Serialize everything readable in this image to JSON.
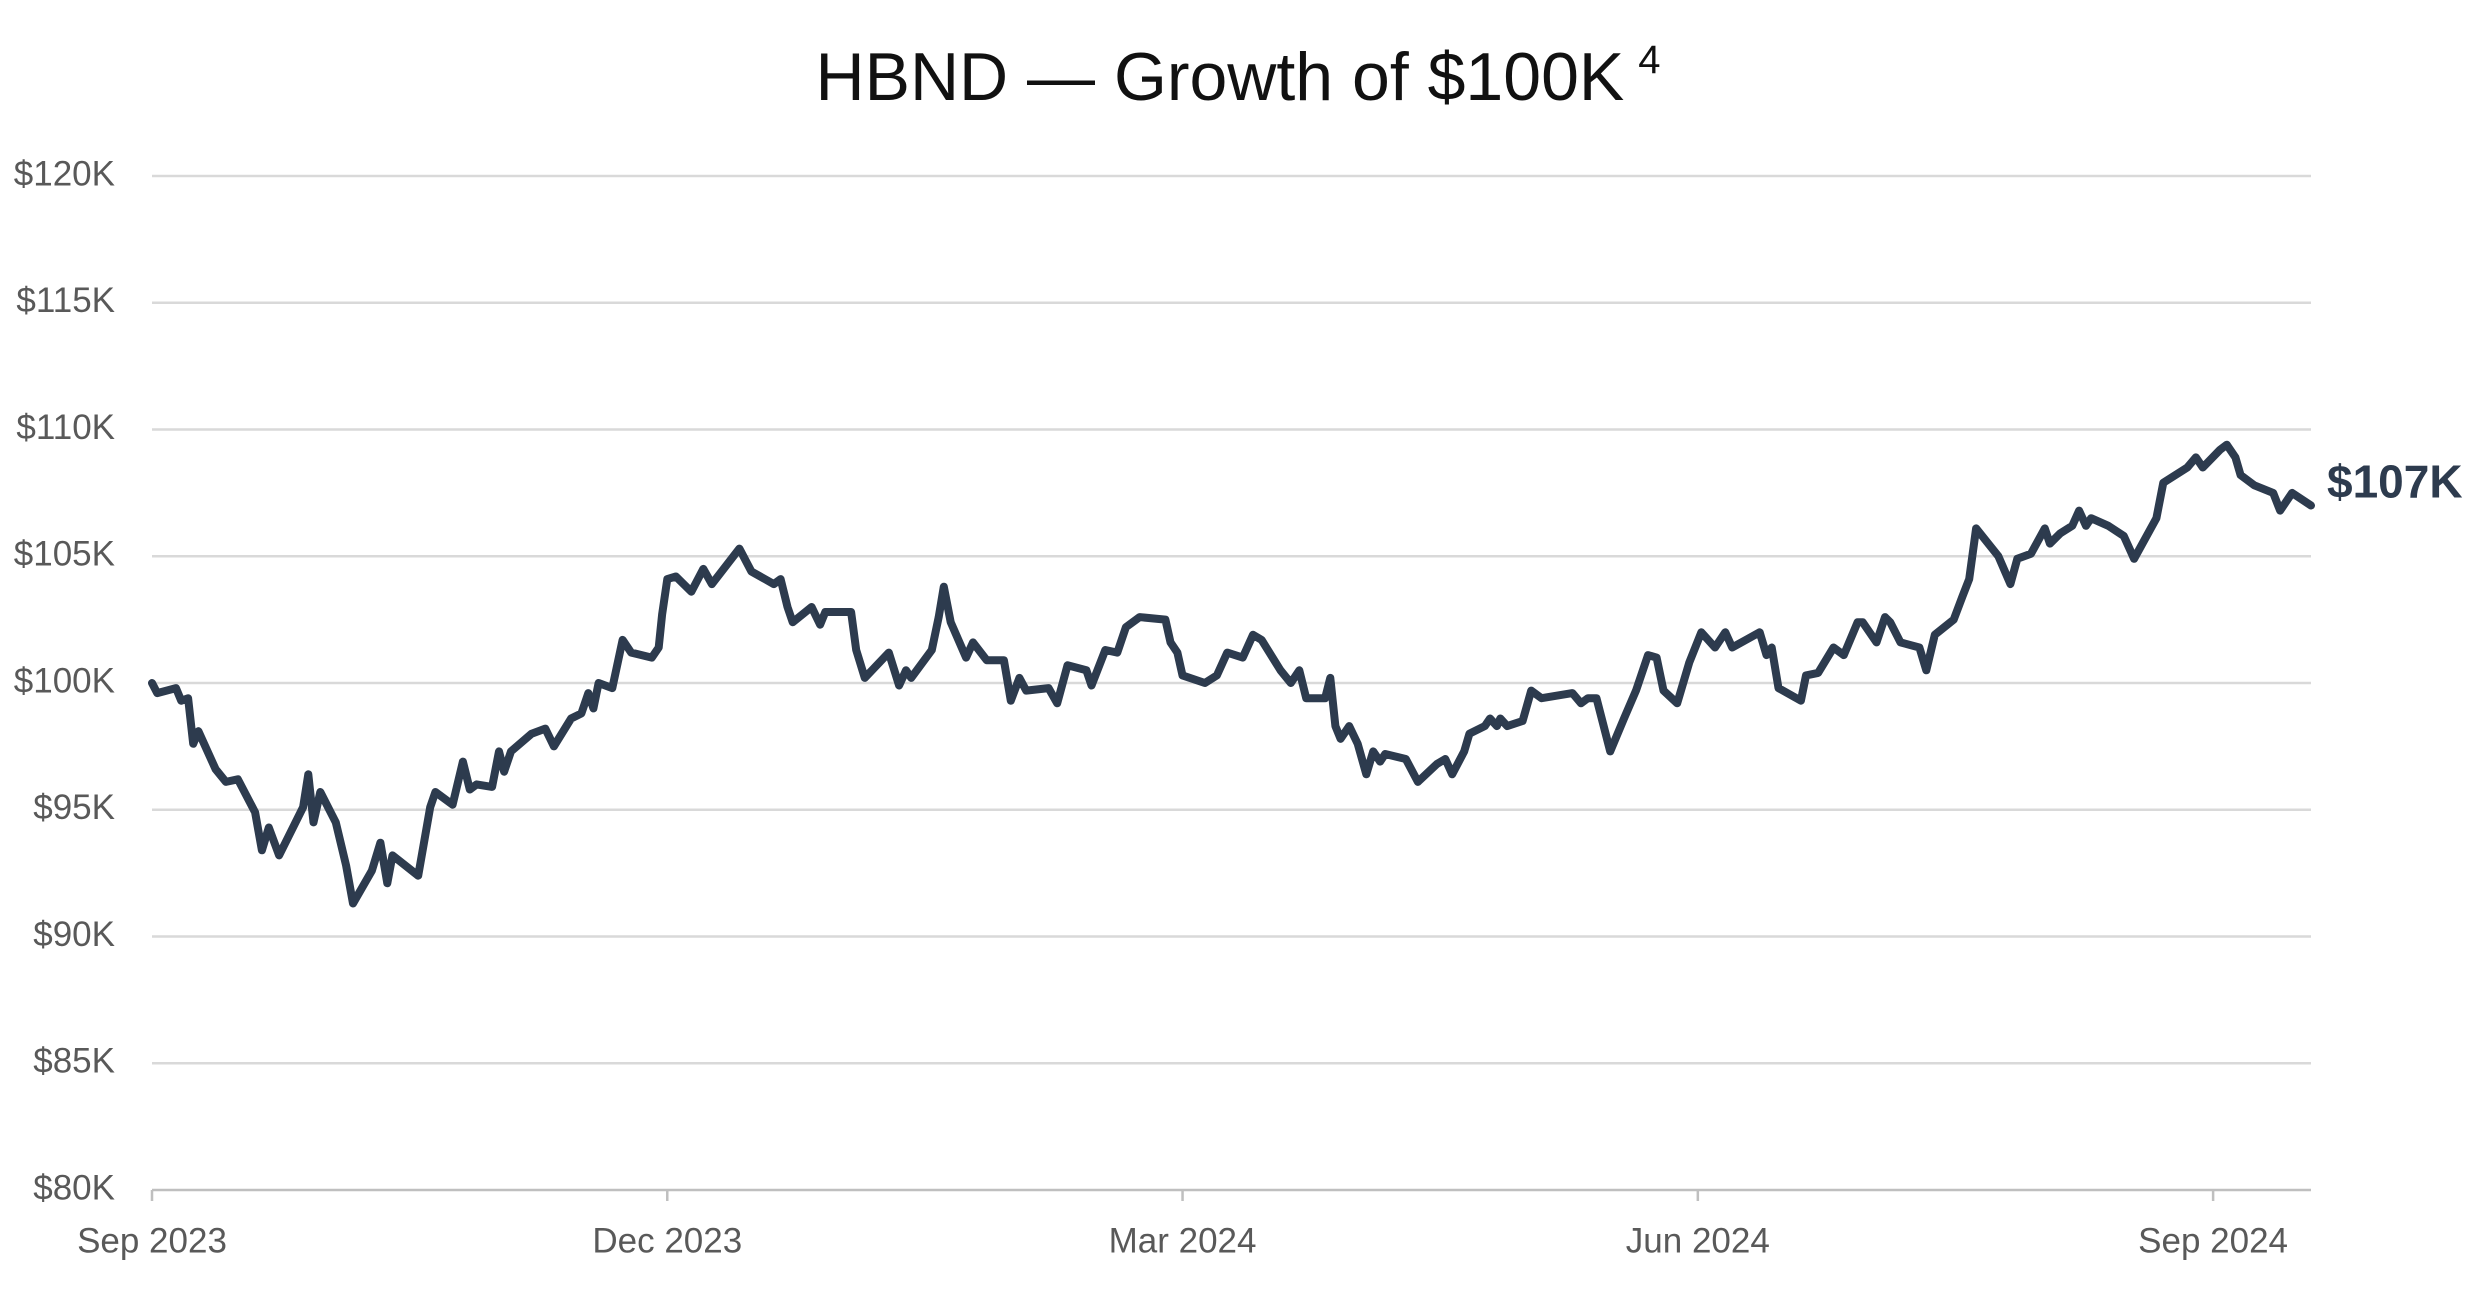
{
  "chart_data": {
    "type": "line",
    "title": "HBND — Growth of $100K",
    "title_superscript": "4",
    "annotation": "$107K",
    "color": "#2d3b4e",
    "grid": true,
    "xlim": [
      0,
      12.57
    ],
    "xticks": [
      {
        "value": 0,
        "label": "Sep 2023"
      },
      {
        "value": 3,
        "label": "Dec 2023"
      },
      {
        "value": 6,
        "label": "Mar 2024"
      },
      {
        "value": 9,
        "label": "Jun 2024"
      },
      {
        "value": 12,
        "label": "Sep 2024"
      }
    ],
    "ylim": [
      80,
      120
    ],
    "yticks": [
      {
        "value": 80,
        "label": "$80K"
      },
      {
        "value": 85,
        "label": "$85K"
      },
      {
        "value": 90,
        "label": "$90K"
      },
      {
        "value": 95,
        "label": "$95K"
      },
      {
        "value": 100,
        "label": "$100K"
      },
      {
        "value": 105,
        "label": "$105K"
      },
      {
        "value": 110,
        "label": "$110K"
      },
      {
        "value": 115,
        "label": "$115K"
      },
      {
        "value": 120,
        "label": "$120K"
      }
    ],
    "x": [
      0,
      0.03,
      0.14,
      0.17,
      0.21,
      0.24,
      0.27,
      0.37,
      0.43,
      0.5,
      0.6,
      0.64,
      0.68,
      0.74,
      0.88,
      0.91,
      0.94,
      0.98,
      1.07,
      1.13,
      1.17,
      1.28,
      1.33,
      1.37,
      1.4,
      1.55,
      1.62,
      1.65,
      1.75,
      1.81,
      1.85,
      1.89,
      1.98,
      2.02,
      2.05,
      2.09,
      2.21,
      2.29,
      2.34,
      2.44,
      2.5,
      2.54,
      2.57,
      2.6,
      2.68,
      2.74,
      2.79,
      2.91,
      2.95,
      2.97,
      3.0,
      3.05,
      3.14,
      3.21,
      3.26,
      3.42,
      3.49,
      3.62,
      3.66,
      3.7,
      3.73,
      3.84,
      3.89,
      3.92,
      4.07,
      4.1,
      4.15,
      4.29,
      4.35,
      4.39,
      4.42,
      4.54,
      4.58,
      4.61,
      4.65,
      4.74,
      4.78,
      4.86,
      4.96,
      5.0,
      5.05,
      5.09,
      5.22,
      5.27,
      5.33,
      5.44,
      5.47,
      5.55,
      5.62,
      5.67,
      5.75,
      5.9,
      5.93,
      5.97,
      6.0,
      6.13,
      6.2,
      6.26,
      6.35,
      6.41,
      6.46,
      6.57,
      6.63,
      6.68,
      6.72,
      6.83,
      6.86,
      6.89,
      6.92,
      6.97,
      7.02,
      7.07,
      7.11,
      7.15,
      7.18,
      7.3,
      7.37,
      7.48,
      7.53,
      7.57,
      7.64,
      7.67,
      7.76,
      7.79,
      7.83,
      7.85,
      7.89,
      7.98,
      8.03,
      8.09,
      8.27,
      8.32,
      8.36,
      8.41,
      8.49,
      8.57,
      8.64,
      8.71,
      8.76,
      8.8,
      8.88,
      8.95,
      9.02,
      9.1,
      9.16,
      9.2,
      9.36,
      9.4,
      9.43,
      9.47,
      9.6,
      9.63,
      9.7,
      9.79,
      9.85,
      9.93,
      9.96,
      10.04,
      10.09,
      10.12,
      10.18,
      10.29,
      10.33,
      10.38,
      10.49,
      10.54,
      10.58,
      10.62,
      10.75,
      10.82,
      10.86,
      10.94,
      11.02,
      11.05,
      11.11,
      11.18,
      11.22,
      11.26,
      11.29,
      11.39,
      11.48,
      11.54,
      11.67,
      11.71,
      11.85,
      11.9,
      11.94,
      12.04,
      12.08,
      12.13,
      12.16,
      12.24,
      12.35,
      12.39,
      12.46,
      12.57
    ],
    "values": [
      100.0,
      99.6,
      99.8,
      99.3,
      99.4,
      97.6,
      98.1,
      96.6,
      96.1,
      96.2,
      94.9,
      93.4,
      94.3,
      93.2,
      95.1,
      96.4,
      94.5,
      95.7,
      94.5,
      92.8,
      91.3,
      92.6,
      93.7,
      92.1,
      93.2,
      92.4,
      95.1,
      95.7,
      95.2,
      96.9,
      95.8,
      96.0,
      95.9,
      97.3,
      96.5,
      97.3,
      98.0,
      98.2,
      97.5,
      98.6,
      98.8,
      99.6,
      99.0,
      100.0,
      99.8,
      101.7,
      101.2,
      101.0,
      101.4,
      102.7,
      104.1,
      104.2,
      103.6,
      104.5,
      103.9,
      105.3,
      104.4,
      103.9,
      104.1,
      103.0,
      102.4,
      103.0,
      102.3,
      102.8,
      102.8,
      101.3,
      100.2,
      101.2,
      99.9,
      100.5,
      100.2,
      101.3,
      102.6,
      103.8,
      102.4,
      101.0,
      101.6,
      100.9,
      100.9,
      99.3,
      100.2,
      99.7,
      99.8,
      99.2,
      100.7,
      100.5,
      99.9,
      101.3,
      101.2,
      102.2,
      102.6,
      102.5,
      101.6,
      101.2,
      100.3,
      100.0,
      100.3,
      101.2,
      101.0,
      101.9,
      101.7,
      100.5,
      100.0,
      100.5,
      99.4,
      99.4,
      100.2,
      98.3,
      97.8,
      98.3,
      97.6,
      96.4,
      97.3,
      96.9,
      97.2,
      97.0,
      96.1,
      96.8,
      97.0,
      96.4,
      97.3,
      98.0,
      98.3,
      98.6,
      98.3,
      98.6,
      98.3,
      98.5,
      99.7,
      99.4,
      99.6,
      99.2,
      99.4,
      99.4,
      97.3,
      98.6,
      99.7,
      101.1,
      101.0,
      99.7,
      99.2,
      100.8,
      102.0,
      101.4,
      102.0,
      101.4,
      102.0,
      101.1,
      101.4,
      99.8,
      99.3,
      100.3,
      100.4,
      101.4,
      101.1,
      102.4,
      102.4,
      101.6,
      102.6,
      102.4,
      101.6,
      101.4,
      100.5,
      101.9,
      102.5,
      103.4,
      104.1,
      106.1,
      105.0,
      103.9,
      104.9,
      105.1,
      106.1,
      105.5,
      105.9,
      106.2,
      106.8,
      106.2,
      106.5,
      106.2,
      105.8,
      104.9,
      106.5,
      107.9,
      108.5,
      108.9,
      108.5,
      109.2,
      109.4,
      108.9,
      108.2,
      107.8,
      107.5,
      106.8,
      107.5,
      107.0
    ]
  }
}
